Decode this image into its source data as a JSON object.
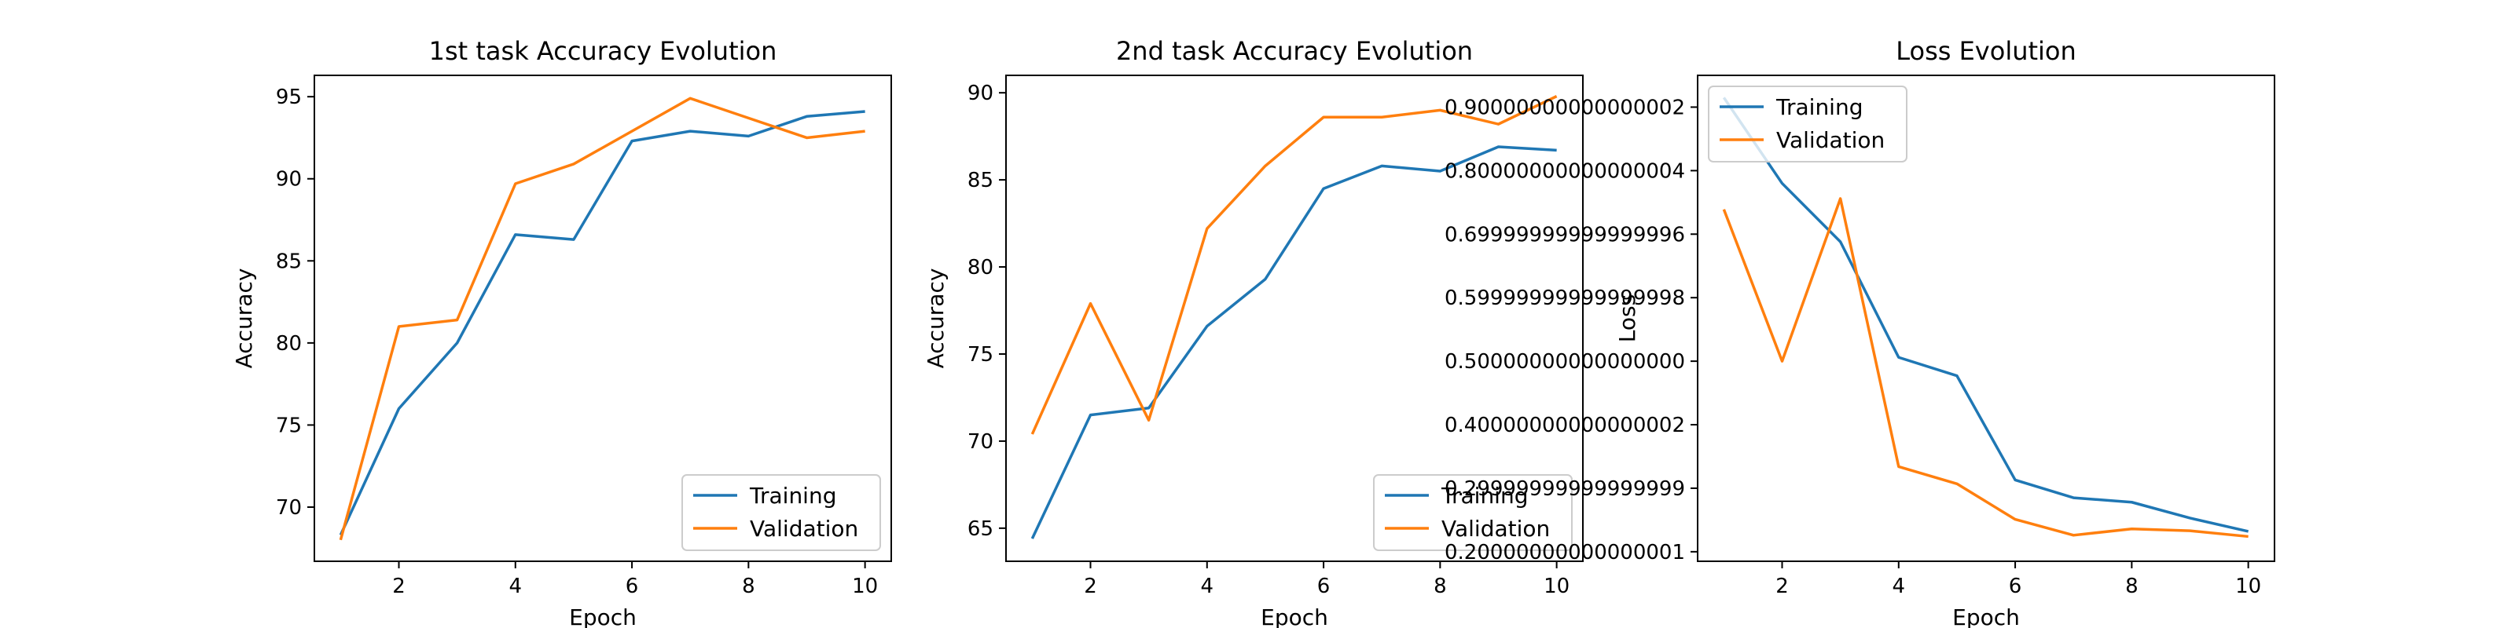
{
  "colors": {
    "training": "#1f77b4",
    "validation": "#ff7f0e",
    "legend_border": "#cccccc"
  },
  "chart_data": [
    {
      "type": "line",
      "title": "1st task Accuracy Evolution",
      "xlabel": "Epoch",
      "ylabel": "Accuracy",
      "x": [
        1,
        2,
        3,
        4,
        5,
        6,
        7,
        8,
        9,
        10
      ],
      "xlim": [
        0.55,
        10.45
      ],
      "ylim": [
        66.7,
        96.3
      ],
      "xticks": [
        2,
        4,
        6,
        8,
        10
      ],
      "yticks": [
        70,
        75,
        80,
        85,
        90,
        95
      ],
      "grid": false,
      "legend_position": "lower right",
      "series": [
        {
          "name": "Training",
          "color": "#1f77b4",
          "values": [
            68.3,
            76.0,
            80.0,
            86.6,
            86.3,
            92.3,
            92.9,
            92.6,
            93.8,
            94.1
          ]
        },
        {
          "name": "Validation",
          "color": "#ff7f0e",
          "values": [
            68.0,
            81.0,
            81.4,
            89.7,
            90.9,
            92.9,
            94.9,
            93.7,
            92.5,
            92.9
          ]
        }
      ]
    },
    {
      "type": "line",
      "title": "2nd task Accuracy Evolution",
      "xlabel": "Epoch",
      "ylabel": "Accuracy",
      "x": [
        1,
        2,
        3,
        4,
        5,
        6,
        7,
        8,
        9,
        10
      ],
      "xlim": [
        0.55,
        10.45
      ],
      "ylim": [
        63.1,
        91.0
      ],
      "xticks": [
        2,
        4,
        6,
        8,
        10
      ],
      "yticks": [
        65,
        70,
        75,
        80,
        85,
        90
      ],
      "grid": false,
      "legend_position": "lower right",
      "series": [
        {
          "name": "Training",
          "color": "#1f77b4",
          "values": [
            64.4,
            71.5,
            71.9,
            76.6,
            79.3,
            84.5,
            85.8,
            85.5,
            86.9,
            86.7
          ]
        },
        {
          "name": "Validation",
          "color": "#ff7f0e",
          "values": [
            70.4,
            77.9,
            71.2,
            82.2,
            85.8,
            88.6,
            88.6,
            89.0,
            88.2,
            89.8
          ]
        }
      ]
    },
    {
      "type": "line",
      "title": "Loss Evolution",
      "xlabel": "Epoch",
      "ylabel": "Loss",
      "x": [
        1,
        2,
        3,
        4,
        5,
        6,
        7,
        8,
        9,
        10
      ],
      "xlim": [
        0.55,
        10.45
      ],
      "ylim": [
        0.185,
        0.95
      ],
      "xticks": [
        2,
        4,
        6,
        8,
        10
      ],
      "yticks": [
        0.2,
        0.3,
        0.4,
        0.5,
        0.6,
        0.7,
        0.8,
        0.9
      ],
      "grid": false,
      "legend_position": "upper left",
      "series": [
        {
          "name": "Training",
          "color": "#1f77b4",
          "values": [
            0.915,
            0.78,
            0.688,
            0.506,
            0.477,
            0.313,
            0.285,
            0.278,
            0.253,
            0.232
          ]
        },
        {
          "name": "Validation",
          "color": "#ff7f0e",
          "values": [
            0.739,
            0.5,
            0.756,
            0.334,
            0.307,
            0.251,
            0.226,
            0.236,
            0.233,
            0.224
          ]
        }
      ]
    }
  ]
}
